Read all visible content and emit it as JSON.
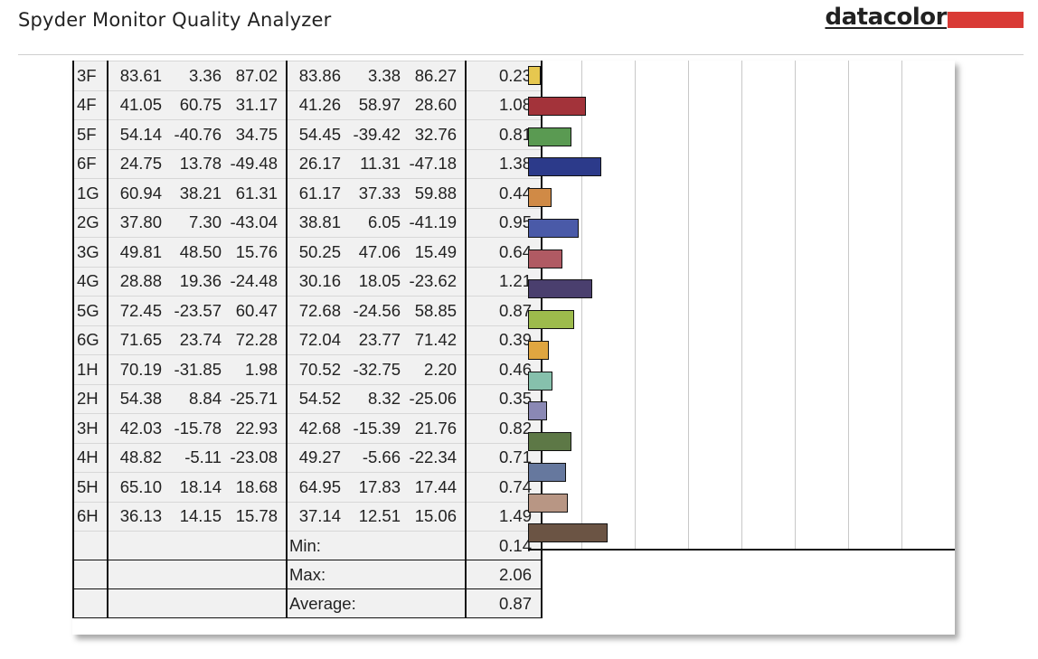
{
  "header": {
    "app_title": "Spyder Monitor Quality Analyzer",
    "brand": "datacolor",
    "brand_color": "#d93a35"
  },
  "table": {
    "rows": [
      {
        "patch": "3F",
        "ref": [
          "83.61",
          "3.36",
          "87.02"
        ],
        "meas": [
          "83.86",
          "3.38",
          "86.27"
        ],
        "de": "0.23",
        "color": "#e6c74f"
      },
      {
        "patch": "4F",
        "ref": [
          "41.05",
          "60.75",
          "31.17"
        ],
        "meas": [
          "41.26",
          "58.97",
          "28.60"
        ],
        "de": "1.08",
        "color": "#a3333a"
      },
      {
        "patch": "5F",
        "ref": [
          "54.14",
          "-40.76",
          "34.75"
        ],
        "meas": [
          "54.45",
          "-39.42",
          "32.76"
        ],
        "de": "0.81",
        "color": "#5a9a52"
      },
      {
        "patch": "6F",
        "ref": [
          "24.75",
          "13.78",
          "-49.48"
        ],
        "meas": [
          "26.17",
          "11.31",
          "-47.18"
        ],
        "de": "1.38",
        "color": "#2c3a8a"
      },
      {
        "patch": "1G",
        "ref": [
          "60.94",
          "38.21",
          "61.31"
        ],
        "meas": [
          "61.17",
          "37.33",
          "59.88"
        ],
        "de": "0.44",
        "color": "#d08a46"
      },
      {
        "patch": "2G",
        "ref": [
          "37.80",
          "7.30",
          "-43.04"
        ],
        "meas": [
          "38.81",
          "6.05",
          "-41.19"
        ],
        "de": "0.95",
        "color": "#4a5aa8"
      },
      {
        "patch": "3G",
        "ref": [
          "49.81",
          "48.50",
          "15.76"
        ],
        "meas": [
          "50.25",
          "47.06",
          "15.49"
        ],
        "de": "0.64",
        "color": "#b05a63"
      },
      {
        "patch": "4G",
        "ref": [
          "28.88",
          "19.36",
          "-24.48"
        ],
        "meas": [
          "30.16",
          "18.05",
          "-23.62"
        ],
        "de": "1.21",
        "color": "#4a3f6e"
      },
      {
        "patch": "5G",
        "ref": [
          "72.45",
          "-23.57",
          "60.47"
        ],
        "meas": [
          "72.68",
          "-24.56",
          "58.85"
        ],
        "de": "0.87",
        "color": "#9dbb4c"
      },
      {
        "patch": "6G",
        "ref": [
          "71.65",
          "23.74",
          "72.28"
        ],
        "meas": [
          "72.04",
          "23.77",
          "71.42"
        ],
        "de": "0.39",
        "color": "#e0a640"
      },
      {
        "patch": "1H",
        "ref": [
          "70.19",
          "-31.85",
          "1.98"
        ],
        "meas": [
          "70.52",
          "-32.75",
          "2.20"
        ],
        "de": "0.46",
        "color": "#86c0ac"
      },
      {
        "patch": "2H",
        "ref": [
          "54.38",
          "8.84",
          "-25.71"
        ],
        "meas": [
          "54.52",
          "8.32",
          "-25.06"
        ],
        "de": "0.35",
        "color": "#8a88b4"
      },
      {
        "patch": "3H",
        "ref": [
          "42.03",
          "-15.78",
          "22.93"
        ],
        "meas": [
          "42.68",
          "-15.39",
          "21.76"
        ],
        "de": "0.82",
        "color": "#5d7846"
      },
      {
        "patch": "4H",
        "ref": [
          "48.82",
          "-5.11",
          "-23.08"
        ],
        "meas": [
          "49.27",
          "-5.66",
          "-22.34"
        ],
        "de": "0.71",
        "color": "#66789e"
      },
      {
        "patch": "5H",
        "ref": [
          "65.10",
          "18.14",
          "18.68"
        ],
        "meas": [
          "64.95",
          "17.83",
          "17.44"
        ],
        "de": "0.74",
        "color": "#b89684"
      },
      {
        "patch": "6H",
        "ref": [
          "36.13",
          "14.15",
          "15.78"
        ],
        "meas": [
          "37.14",
          "12.51",
          "15.06"
        ],
        "de": "1.49",
        "color": "#6b5444"
      }
    ],
    "summary": [
      {
        "label": "Min:",
        "value": "0.14"
      },
      {
        "label": "Max:",
        "value": "2.06"
      },
      {
        "label": "Average:",
        "value": "0.87"
      }
    ]
  },
  "chart_data": {
    "type": "bar",
    "orientation": "horizontal",
    "categories": [
      "3F",
      "4F",
      "5F",
      "6F",
      "1G",
      "2G",
      "3G",
      "4G",
      "5G",
      "6G",
      "1H",
      "2H",
      "3H",
      "4H",
      "5H",
      "6H"
    ],
    "values": [
      0.23,
      1.08,
      0.81,
      1.38,
      0.44,
      0.95,
      0.64,
      1.21,
      0.87,
      0.39,
      0.46,
      0.35,
      0.82,
      0.71,
      0.74,
      1.49
    ],
    "xlim": [
      0,
      8
    ],
    "grid": true
  }
}
